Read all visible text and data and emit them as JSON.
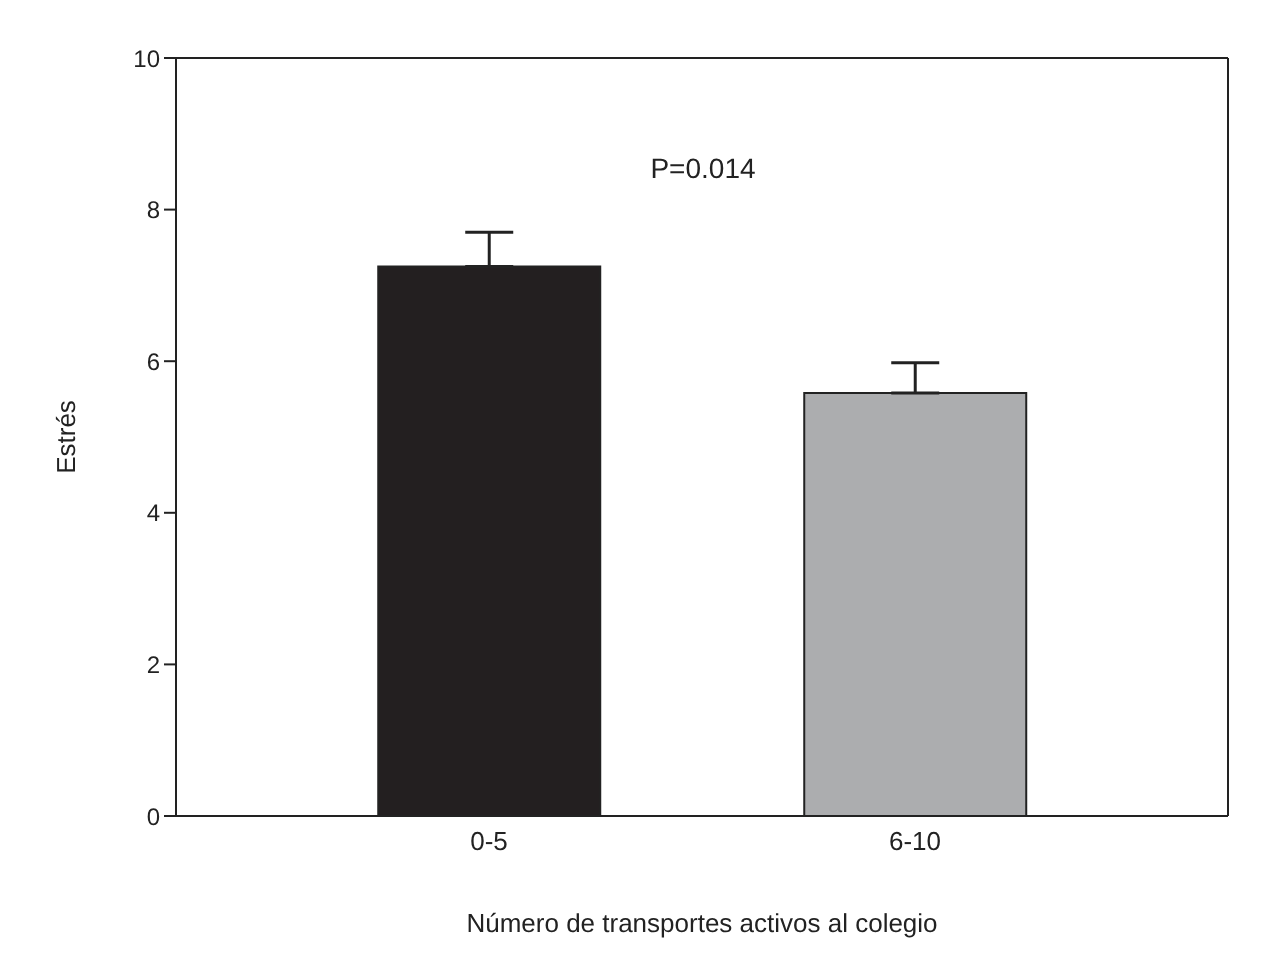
{
  "chart_data": {
    "type": "bar",
    "xlabel": "Número de transportes activos al colegio",
    "ylabel": "Estrés",
    "categories": [
      "0-5",
      "6-10"
    ],
    "values": [
      7.25,
      5.58
    ],
    "colors": [
      "#231f20",
      "#acadaf"
    ],
    "errors": [
      [
        7.25,
        7.7
      ],
      [
        5.58,
        5.98
      ]
    ],
    "ylim": [
      0,
      10
    ],
    "yticks": [
      0,
      2,
      4,
      6,
      8,
      10
    ],
    "annotations": [
      "P=0.014"
    ]
  }
}
